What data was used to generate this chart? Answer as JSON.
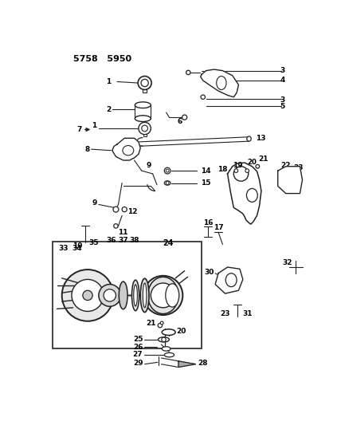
{
  "title": "5758   5950",
  "bg": "#ffffff",
  "lc": "#222222",
  "fig_w": 4.28,
  "fig_h": 5.33,
  "dpi": 100
}
